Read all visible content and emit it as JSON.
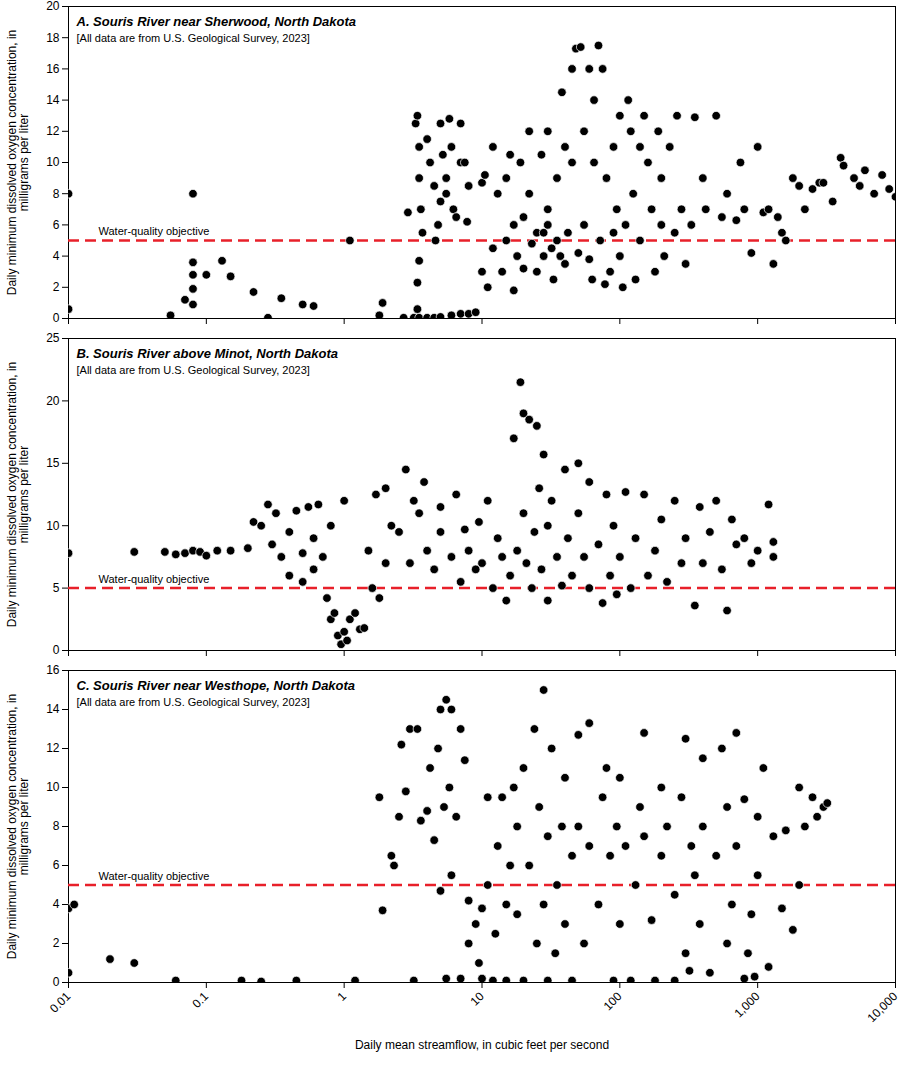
{
  "chart_data": [
    {
      "type": "scatter",
      "title": "A. Souris River near Sherwood, North Dakota",
      "subtitle": "[All data are from U.S. Geological Survey, 2023]",
      "ylabel": "Daily minimum dissolved oxygen concentration, in milligrams per liter",
      "log": "x",
      "grid": false,
      "tick_labels": "y",
      "color": "#000000",
      "marker": "circle",
      "xlim": [
        0.01,
        10000
      ],
      "xticks": [
        0.01,
        0.1,
        1,
        10,
        100,
        {
          "value": 1000,
          "label": "1,000"
        },
        {
          "value": 10000,
          "label": "10,000"
        }
      ],
      "ylim": [
        0,
        20
      ],
      "yticks": [
        0,
        2,
        4,
        6,
        8,
        10,
        12,
        14,
        16,
        18,
        20
      ],
      "annotations": [
        {
          "text": "Water-quality objective",
          "y": 5,
          "color": "#e8202a",
          "line_style": "dashed"
        }
      ],
      "x": [
        0.01,
        0.01,
        0.055,
        0.07,
        0.08,
        0.08,
        0.08,
        0.08,
        0.08,
        0.1,
        0.13,
        0.15,
        0.22,
        0.28,
        0.35,
        0.5,
        0.6,
        1.1,
        1.8,
        1.9,
        2.7,
        2.9,
        3.2,
        3.5,
        4,
        4.5,
        5,
        6,
        7,
        8,
        9,
        3.3,
        3.4,
        3.5,
        3.5,
        3.6,
        3.7,
        3.5,
        3.4,
        3.4,
        4,
        4.2,
        4.5,
        4.8,
        5,
        5.2,
        5.5,
        5.5,
        5.8,
        6,
        6.2,
        6.5,
        7,
        7,
        7.5,
        8,
        7.8,
        4.6,
        5,
        10,
        10,
        10.5,
        11,
        12,
        12,
        13,
        14,
        15,
        15,
        16,
        17,
        17,
        18,
        19,
        20,
        20,
        22,
        22,
        23,
        25,
        25,
        27,
        28,
        28,
        30,
        30,
        30,
        32,
        33,
        35,
        35,
        37,
        38,
        40,
        40,
        42,
        45,
        45,
        48,
        50,
        52,
        55,
        55,
        60,
        60,
        63,
        65,
        65,
        70,
        72,
        75,
        78,
        80,
        85,
        90,
        90,
        95,
        100,
        100,
        105,
        110,
        115,
        120,
        125,
        130,
        140,
        140,
        150,
        160,
        170,
        180,
        190,
        200,
        200,
        210,
        230,
        250,
        260,
        280,
        300,
        330,
        350,
        400,
        420,
        500,
        550,
        600,
        700,
        750,
        800,
        900,
        1000,
        1100,
        1200,
        1300,
        1400,
        1500,
        1600,
        1800,
        2000,
        2200,
        2500,
        2800,
        3000,
        3500,
        4000,
        4200,
        5000,
        5500,
        6000,
        7000,
        8000,
        9000,
        10000
      ],
      "values": [
        0.6,
        8,
        0.2,
        1.2,
        8,
        3.6,
        2.8,
        1.9,
        0.9,
        2.8,
        3.7,
        2.7,
        1.7,
        0.05,
        1.3,
        0.9,
        0.8,
        5,
        0.2,
        1.0,
        0.05,
        6.8,
        0.05,
        0.05,
        0.05,
        0.05,
        0.1,
        0.2,
        0.3,
        0.3,
        0.4,
        12.5,
        13,
        11,
        9,
        7,
        5.5,
        3.7,
        2.3,
        0.6,
        11.5,
        10,
        8.5,
        6,
        12.5,
        10.5,
        9,
        8,
        12.8,
        11,
        7,
        6.5,
        10,
        12.5,
        10,
        8.5,
        6.2,
        5,
        7.5,
        3,
        8.7,
        9.2,
        2,
        4.5,
        11,
        8,
        3,
        5,
        9,
        10.5,
        6,
        1.8,
        4,
        10,
        6.5,
        3.2,
        8,
        12,
        4.8,
        5.5,
        3,
        10.5,
        5.5,
        4,
        6,
        12,
        7,
        4.5,
        2.5,
        9,
        5,
        4,
        14.5,
        11,
        3.5,
        5.5,
        16,
        10,
        17.3,
        4.2,
        17.4,
        12,
        6,
        16,
        3.8,
        2.5,
        10,
        14,
        17.5,
        5,
        16,
        2.2,
        9,
        3,
        11,
        5.5,
        7,
        13,
        4,
        2,
        6,
        14,
        12,
        8,
        2.5,
        11,
        5,
        13,
        10,
        7,
        3,
        12,
        9,
        6,
        4,
        11,
        5.5,
        13,
        7,
        3.5,
        6,
        12.9,
        9,
        7,
        13,
        6.5,
        8,
        6.3,
        10,
        7,
        4.2,
        11,
        6.8,
        7,
        3.5,
        6.5,
        5.5,
        5,
        9,
        8.5,
        7,
        8.3,
        8.7,
        8.7,
        7.5,
        10.3,
        9.8,
        9,
        8.5,
        9.5,
        8,
        9.2,
        8.3,
        7.8
      ]
    },
    {
      "type": "scatter",
      "title": "B. Souris River above Minot, North Dakota",
      "subtitle": "[All data are from U.S. Geological Survey, 2023]",
      "ylabel": "Daily minimum dissolved oxygen concentration, in milligrams per liter",
      "log": "x",
      "grid": false,
      "tick_labels": "y",
      "color": "#000000",
      "marker": "circle",
      "xlim": [
        0.01,
        10000
      ],
      "xticks": [
        0.01,
        0.1,
        1,
        10,
        100,
        {
          "value": 1000,
          "label": "1,000"
        },
        {
          "value": 10000,
          "label": "10,000"
        }
      ],
      "ylim": [
        0,
        25
      ],
      "yticks": [
        0,
        5,
        10,
        15,
        20,
        25
      ],
      "annotations": [
        {
          "text": "Water-quality objective",
          "y": 5,
          "color": "#e8202a",
          "line_style": "dashed"
        }
      ],
      "x": [
        0.01,
        0.03,
        0.05,
        0.06,
        0.07,
        0.08,
        0.09,
        0.1,
        0.12,
        0.15,
        0.2,
        0.22,
        0.25,
        0.28,
        0.3,
        0.32,
        0.35,
        0.4,
        0.4,
        0.45,
        0.5,
        0.5,
        0.55,
        0.6,
        0.6,
        0.65,
        0.7,
        0.75,
        0.8,
        0.8,
        0.85,
        0.9,
        0.95,
        1,
        1,
        1.05,
        1.1,
        1.2,
        1.3,
        1.4,
        1.5,
        1.6,
        1.7,
        1.8,
        2,
        2,
        2.2,
        2.5,
        2.8,
        3,
        3.2,
        3.5,
        3.8,
        4,
        4.5,
        5,
        5,
        6,
        6.5,
        7,
        7.5,
        8,
        9,
        9.5,
        10,
        11,
        12,
        13,
        14,
        15,
        16,
        17,
        18,
        19,
        20,
        20,
        21,
        22,
        23,
        24,
        25,
        26,
        27,
        28,
        30,
        30,
        32,
        35,
        38,
        40,
        42,
        45,
        50,
        50,
        55,
        60,
        60,
        70,
        75,
        80,
        85,
        90,
        95,
        100,
        110,
        120,
        130,
        150,
        160,
        180,
        200,
        220,
        250,
        280,
        300,
        350,
        380,
        400,
        450,
        500,
        550,
        600,
        650,
        700,
        800,
        900,
        1000,
        1200,
        1300,
        1300
      ],
      "values": [
        7.8,
        7.9,
        7.9,
        7.7,
        7.8,
        8,
        7.9,
        7.6,
        8,
        8,
        8.2,
        10.3,
        10,
        11.7,
        8.5,
        11,
        7.5,
        6,
        9.5,
        11.2,
        7.8,
        5.5,
        11.5,
        9,
        6.5,
        11.7,
        7.5,
        4.2,
        2.5,
        10,
        3,
        1.2,
        0.5,
        1.5,
        12,
        0.8,
        2.5,
        3,
        1.7,
        1.8,
        8,
        5,
        12.5,
        4.2,
        7,
        13,
        10,
        9.5,
        14.5,
        7,
        12,
        11,
        13.5,
        8,
        6.5,
        11.5,
        9.5,
        7.5,
        12.5,
        5.5,
        9.7,
        8,
        6.5,
        10.3,
        7,
        12,
        5,
        9,
        7.5,
        4,
        6,
        17,
        8,
        21.5,
        19,
        11,
        7,
        18.5,
        5,
        9.5,
        18,
        13,
        6.5,
        15.7,
        4,
        10,
        12,
        7.5,
        5.2,
        14.5,
        9,
        6,
        15,
        11,
        7.5,
        5,
        13.5,
        8.5,
        3.8,
        12.5,
        6,
        10,
        4.5,
        7.5,
        12.7,
        5,
        9,
        12.5,
        6,
        8,
        10.5,
        5.5,
        12,
        7,
        9,
        3.6,
        11.5,
        7,
        9.5,
        12,
        6.5,
        3.2,
        10.5,
        8.5,
        9,
        7,
        8,
        11.7,
        8.7,
        7.5
      ]
    },
    {
      "type": "scatter",
      "title": "C. Souris River near Westhope, North Dakota",
      "subtitle": "[All data are from U.S. Geological Survey, 2023]",
      "xlabel": "Daily mean streamflow, in cubic feet per second",
      "ylabel": "Daily minimum dissolved oxygen concentration, in milligrams per liter",
      "log": "x",
      "grid": false,
      "color": "#000000",
      "marker": "circle",
      "xlim": [
        0.01,
        10000
      ],
      "xticks": [
        0.01,
        0.1,
        1,
        10,
        100,
        {
          "value": 1000,
          "label": "1,000"
        },
        {
          "value": 10000,
          "label": "10,000"
        }
      ],
      "ylim": [
        0,
        16
      ],
      "yticks": [
        0,
        2,
        4,
        6,
        8,
        10,
        12,
        14,
        16
      ],
      "annotations": [
        {
          "text": "Water-quality objective",
          "y": 5,
          "color": "#e8202a",
          "line_style": "dashed"
        }
      ],
      "x": [
        0.01,
        0.01,
        0.011,
        0.02,
        0.03,
        0.06,
        0.18,
        0.25,
        0.45,
        1.2,
        1.8,
        1.9,
        2.2,
        2.3,
        2.5,
        2.6,
        2.8,
        3,
        3.2,
        3.4,
        3.6,
        4,
        4.2,
        4.5,
        4.8,
        5,
        5,
        5.3,
        5.5,
        5.5,
        5.8,
        6,
        6,
        6.5,
        7,
        7,
        7.5,
        8,
        8,
        9,
        9.5,
        10,
        10,
        11,
        11,
        12,
        12.5,
        13,
        14,
        15,
        15,
        16,
        17,
        18,
        18,
        20,
        20,
        22,
        24,
        25,
        26,
        28,
        28,
        30,
        30,
        32,
        34,
        35,
        38,
        40,
        40,
        45,
        45,
        50,
        50,
        55,
        60,
        60,
        70,
        75,
        80,
        85,
        90,
        95,
        100,
        100,
        110,
        120,
        130,
        140,
        150,
        150,
        170,
        180,
        200,
        200,
        220,
        250,
        250,
        280,
        300,
        300,
        320,
        330,
        350,
        380,
        400,
        400,
        450,
        500,
        550,
        600,
        600,
        650,
        700,
        700,
        800,
        800,
        850,
        900,
        950,
        1000,
        1000,
        1100,
        1200,
        1300,
        1500,
        1600,
        1800,
        2000,
        2000,
        2200,
        2500,
        2700,
        3000,
        3200
      ],
      "values": [
        0.5,
        3.8,
        4,
        1.2,
        1,
        0.1,
        0.1,
        0.05,
        0.1,
        0.1,
        9.5,
        3.7,
        6.5,
        6,
        8.5,
        12.2,
        9.8,
        13,
        0.1,
        13,
        8.3,
        8.8,
        11,
        7.3,
        12,
        14,
        4.7,
        9,
        14.5,
        0.2,
        10,
        14,
        5.5,
        8.5,
        13,
        0.2,
        11.4,
        4.2,
        2,
        3,
        1,
        3.8,
        0.2,
        5,
        9.5,
        0.1,
        2.5,
        7,
        9.5,
        4,
        0.1,
        6,
        10,
        3.5,
        8,
        11,
        0.1,
        6,
        13,
        2,
        9,
        15,
        4,
        7.5,
        0.1,
        12,
        1.5,
        5,
        8,
        3,
        10.5,
        6.5,
        0.1,
        12.7,
        8,
        2,
        13.3,
        7,
        4,
        9.5,
        11,
        6.5,
        0.1,
        8,
        10.5,
        3,
        7,
        0.1,
        5,
        9,
        12.8,
        7.5,
        3.2,
        0.1,
        10,
        6.5,
        8,
        4.5,
        0.1,
        9.5,
        12.5,
        1.5,
        0.6,
        7,
        5.5,
        3,
        11.5,
        8,
        0.5,
        6.5,
        12,
        2,
        9,
        4,
        12.8,
        7,
        0.2,
        9.4,
        1.5,
        3.5,
        0.3,
        8.5,
        5.5,
        11,
        0.8,
        7.5,
        3.8,
        7.8,
        2.7,
        10,
        5,
        8,
        9.5,
        8.5,
        9,
        9.2
      ]
    }
  ]
}
